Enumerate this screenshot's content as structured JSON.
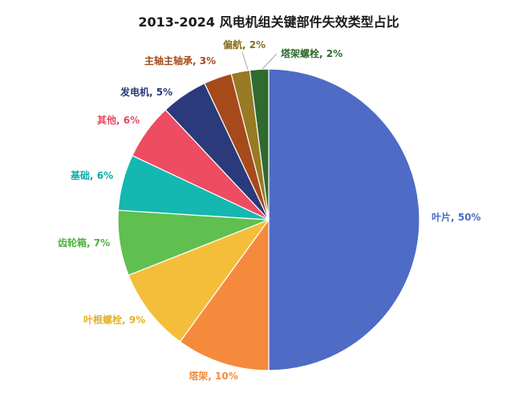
{
  "chart_data": {
    "type": "pie",
    "title": "2013-2024 风电机组关键部件失效类型占比",
    "slices": [
      {
        "label": "叶片",
        "value": 50,
        "display": "叶片, 50%",
        "color": "#4E6BC6",
        "label_color": "#4E6BC6"
      },
      {
        "label": "塔架",
        "value": 10,
        "display": "塔架, 10%",
        "color": "#F58A3C",
        "label_color": "#F58A3C"
      },
      {
        "label": "叶根螺栓",
        "value": 9,
        "display": "叶根螺栓, 9%",
        "color": "#F5BE3A",
        "label_color": "#E7B122"
      },
      {
        "label": "齿轮箱",
        "value": 7,
        "display": "齿轮箱, 7%",
        "color": "#5FBF4F",
        "label_color": "#4DB13E"
      },
      {
        "label": "基础",
        "value": 6,
        "display": "基础, 6%",
        "color": "#14B8B0",
        "label_color": "#10ACA4"
      },
      {
        "label": "其他",
        "value": 6,
        "display": "其他, 6%",
        "color": "#EE4C62",
        "label_color": "#E8485E"
      },
      {
        "label": "发电机",
        "value": 5,
        "display": "发电机, 5%",
        "color": "#2A3A7A",
        "label_color": "#2A3A7A"
      },
      {
        "label": "主轴主轴承",
        "value": 3,
        "display": "主轴主轴承, 3%",
        "color": "#A64A1C",
        "label_color": "#A64A1C"
      },
      {
        "label": "偏航",
        "value": 2,
        "display": "偏航, 2%",
        "color": "#987A24",
        "label_color": "#8A6D1C"
      },
      {
        "label": "塔架螺栓",
        "value": 2,
        "display": "塔架螺栓, 2%",
        "color": "#2F6A2F",
        "label_color": "#2F6A2F"
      }
    ]
  }
}
